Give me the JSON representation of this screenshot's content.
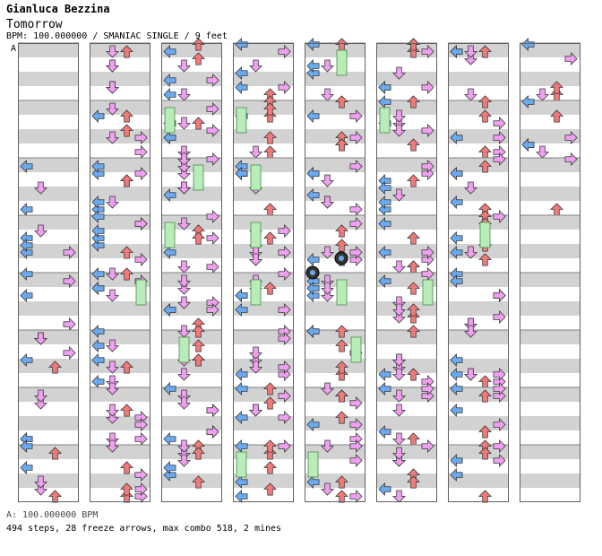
{
  "header": {
    "artist": "Gianluca Bezzina",
    "title": "Tomorrow",
    "meta": "BPM: 100.000000 / SMANIAC SINGLE / 9 feet"
  },
  "section_label": "A",
  "footer": {
    "bpm_line": "A: 100.000000 BPM",
    "stats_line": "494 steps, 28 freeze arrows, max combo 518, 2 mines"
  },
  "colors": {
    "left": "#6aaaf0",
    "down": "#f0a0f0",
    "up": "#f07a7a",
    "right": "#f0a0f0",
    "freeze": "#b8ecb8",
    "stripe": "#d2d2d2",
    "quarter": "#ffe440"
  },
  "chart_data": {
    "type": "step-chart",
    "columns": 8,
    "measures_per_column": 8,
    "lanes": [
      "left",
      "down",
      "up",
      "right"
    ],
    "note_density_per_measure": [
      [
        0,
        0,
        3,
        5,
        4,
        5,
        4,
        6
      ],
      [
        6,
        7,
        8,
        8,
        7,
        8,
        8,
        7
      ],
      [
        8,
        8,
        8,
        8,
        8,
        7,
        8,
        8
      ],
      [
        7,
        7,
        8,
        8,
        8,
        8,
        8,
        8
      ],
      [
        6,
        7,
        8,
        8,
        7,
        7,
        8,
        8
      ],
      [
        8,
        8,
        8,
        8,
        8,
        8,
        8,
        8
      ],
      [
        6,
        7,
        7,
        8,
        8,
        8,
        7,
        7
      ],
      [
        5,
        6,
        2,
        0,
        0,
        0,
        0,
        0
      ]
    ],
    "freeze_arrows": 28,
    "mines": 2,
    "steps": 494,
    "max_combo": 518,
    "bpm": 100
  }
}
